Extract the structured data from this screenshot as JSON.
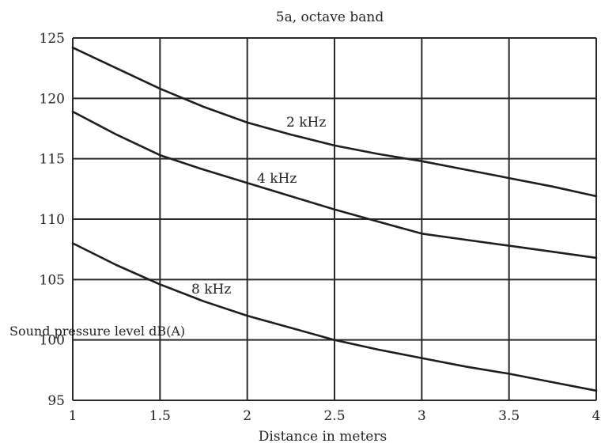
{
  "chart_data": {
    "type": "line",
    "title": "5a, octave band",
    "xlabel": "Distance in meters",
    "ylabel": "Sound pressure level dB(A)",
    "xlim": [
      1,
      4
    ],
    "ylim": [
      95,
      125
    ],
    "xticks": [
      "1",
      "1.5",
      "2",
      "2.5",
      "3",
      "3.5",
      "4"
    ],
    "yticks": [
      "95",
      "100",
      "105",
      "110",
      "115",
      "120",
      "125"
    ],
    "grid": true,
    "series": [
      {
        "name": "2 kHz",
        "x": [
          1,
          1.25,
          1.5,
          1.75,
          2,
          2.25,
          2.5,
          2.75,
          3,
          3.25,
          3.5,
          3.75,
          4
        ],
        "values": [
          124.2,
          122.5,
          120.8,
          119.3,
          118.0,
          117.0,
          116.1,
          115.4,
          114.8,
          114.1,
          113.4,
          112.7,
          111.9
        ]
      },
      {
        "name": "4 kHz",
        "x": [
          1,
          1.25,
          1.5,
          1.75,
          2,
          2.25,
          2.5,
          2.75,
          3,
          3.25,
          3.5,
          3.75,
          4
        ],
        "values": [
          118.9,
          117.0,
          115.3,
          114.1,
          113.0,
          111.9,
          110.8,
          109.8,
          108.8,
          108.3,
          107.8,
          107.3,
          106.8
        ]
      },
      {
        "name": "8 kHz",
        "x": [
          1,
          1.25,
          1.5,
          1.75,
          2,
          2.25,
          2.5,
          2.75,
          3,
          3.25,
          3.5,
          3.75,
          4
        ],
        "values": [
          108.0,
          106.2,
          104.6,
          103.2,
          102.0,
          101.0,
          100.0,
          99.2,
          98.5,
          97.8,
          97.2,
          96.5,
          95.8
        ]
      }
    ]
  }
}
